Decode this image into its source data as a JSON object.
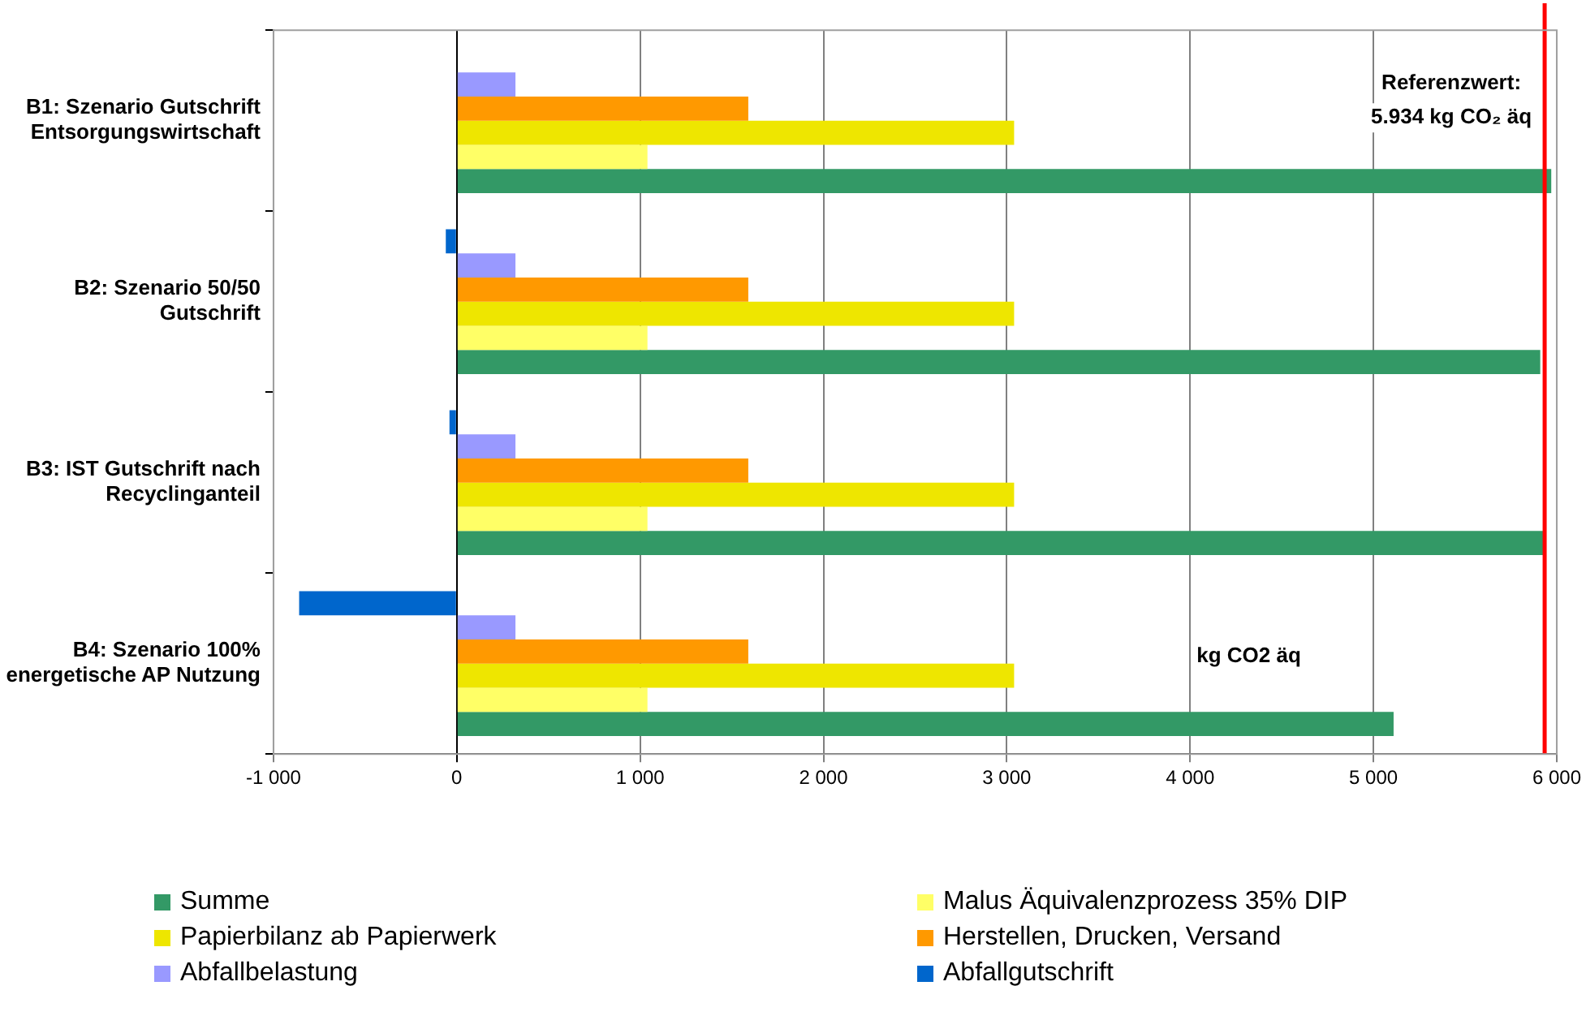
{
  "chart_data": {
    "type": "bar",
    "orientation": "horizontal",
    "categories": [
      "B1: Szenario Gutschrift\nEntsorgungswirtschaft",
      "B2: Szenario 50/50\nGutschrift",
      "B3: IST Gutschrift nach\nRecyclinganteil",
      "B4: Szenario 100%\nenergetische AP Nutzung"
    ],
    "series": [
      {
        "name": "Abfallgutschrift",
        "color": "#0066cc",
        "values": [
          null,
          -60,
          -40,
          -860
        ]
      },
      {
        "name": "Abfallbelastung",
        "color": "#9999ff",
        "values": [
          320,
          320,
          320,
          320
        ]
      },
      {
        "name": "Herstellen, Drucken, Versand",
        "color": "#ff9900",
        "values": [
          1590,
          1590,
          1590,
          1590
        ]
      },
      {
        "name": "Papierbilanz ab Papierwerk",
        "color": "#eee600",
        "values": [
          3040,
          3040,
          3040,
          3040
        ]
      },
      {
        "name": "Malus Äquivalenzprozess 35% DIP",
        "color": "#ffff66",
        "values": [
          1040,
          1040,
          1040,
          1040
        ]
      },
      {
        "name": "Summe",
        "color": "#339966",
        "values": [
          5970,
          5910,
          5930,
          5110
        ]
      }
    ],
    "xlim": [
      -1000,
      6000
    ],
    "xticks": [
      {
        "value": -1000,
        "label": "-1 000"
      },
      0,
      {
        "value": 1000,
        "label": "1 000"
      },
      {
        "value": 2000,
        "label": "2 000"
      },
      {
        "value": 3000,
        "label": "3 000"
      },
      {
        "value": 4000,
        "label": "4 000"
      },
      {
        "value": 5000,
        "label": "5 000"
      },
      {
        "value": 6000,
        "label": "6 000"
      }
    ],
    "ref_lines": [
      {
        "axis": "x",
        "value": 5934,
        "label": "Referenzwert:\n5.934 kg CO₂ äq",
        "color": "#ff0000"
      }
    ],
    "annotations": [
      "kg CO2 äq"
    ],
    "grid": "x",
    "legend": "bottom"
  }
}
